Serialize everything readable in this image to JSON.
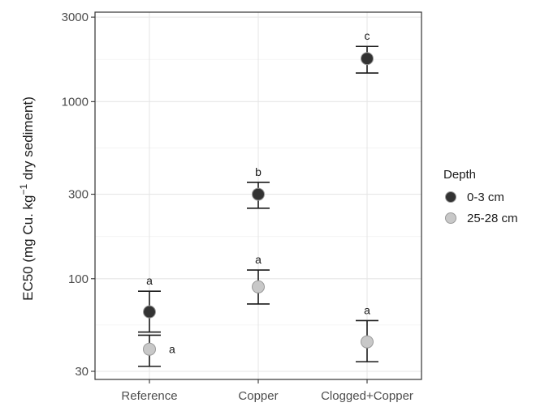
{
  "chart_data": {
    "type": "scatter",
    "y_scale": "log",
    "ylabel_prefix": "EC50 (mg Cu. kg",
    "ylabel_superscript": "−1",
    "ylabel_suffix": " dry sediment)",
    "xlabel": "",
    "categories": [
      "Reference",
      "Copper",
      "Clogged+Copper"
    ],
    "yticks": [
      30,
      100,
      300,
      1000,
      3000
    ],
    "ylim": [
      27,
      3200
    ],
    "grid": true,
    "legend": {
      "title": "Depth",
      "position": "right"
    },
    "series": [
      {
        "name": "0-3 cm",
        "color": "#333333",
        "points": [
          {
            "category": "Reference",
            "y": 65,
            "lower": 50,
            "upper": 85,
            "letter": "a"
          },
          {
            "category": "Copper",
            "y": 300,
            "lower": 250,
            "upper": 350,
            "letter": "b"
          },
          {
            "category": "Clogged+Copper",
            "y": 1750,
            "lower": 1450,
            "upper": 2050,
            "letter": "c"
          }
        ]
      },
      {
        "name": "25-28 cm",
        "color": "#c8c8c8",
        "points": [
          {
            "category": "Reference",
            "y": 40,
            "lower": 32,
            "upper": 48,
            "letter": "a"
          },
          {
            "category": "Copper",
            "y": 90,
            "lower": 72,
            "upper": 112,
            "letter": "a"
          },
          {
            "category": "Clogged+Copper",
            "y": 44,
            "lower": 34,
            "upper": 58,
            "letter": "a"
          }
        ]
      }
    ]
  }
}
